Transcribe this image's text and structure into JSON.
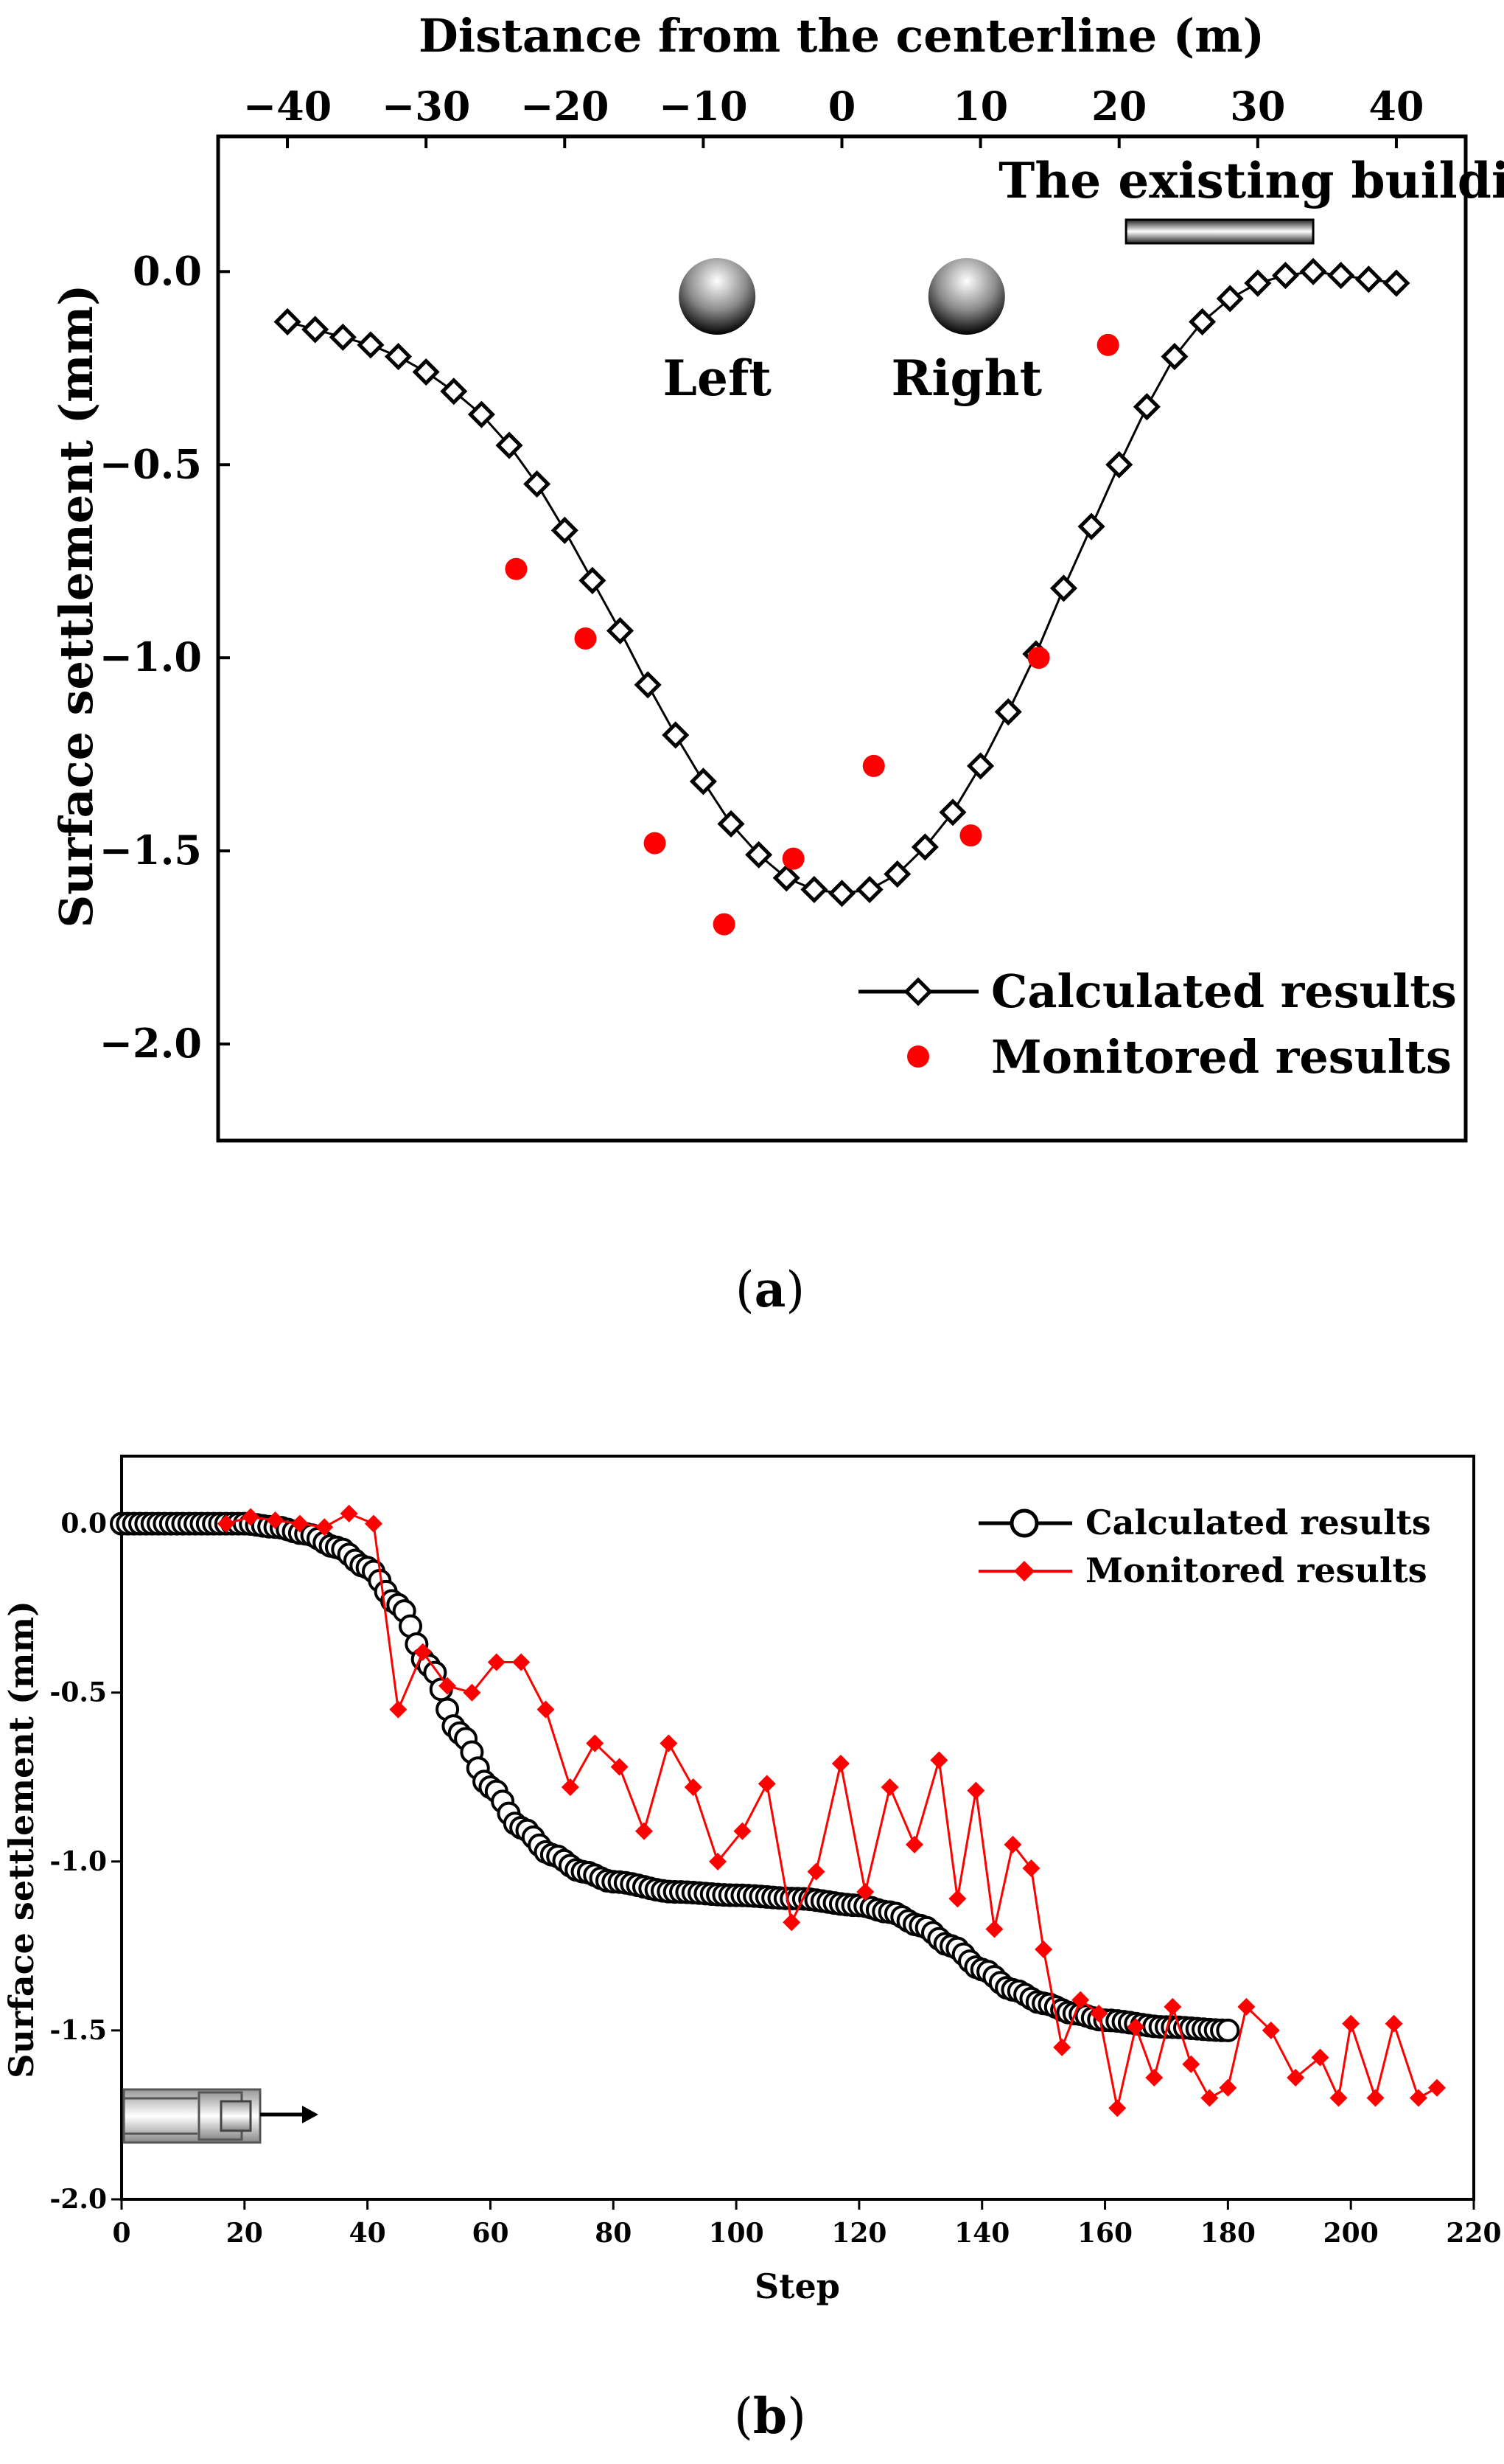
{
  "chart_data": [
    {
      "panel": "a",
      "type": "scatter",
      "caption_letter": "a",
      "xlabel": "Distance from the centerline (m)",
      "ylabel": "Surface settlement (mm)",
      "xlim": [
        -45,
        45
      ],
      "ylim": [
        -2.25,
        0.35
      ],
      "xticks": [
        -40,
        -30,
        -20,
        -10,
        0,
        10,
        20,
        30,
        40
      ],
      "xtick_labels": [
        "−40",
        "−30",
        "−20",
        "−10",
        "0",
        "10",
        "20",
        "30",
        "40"
      ],
      "yticks": [
        0.0,
        -0.5,
        -1.0,
        -1.5,
        -2.0
      ],
      "ytick_labels": [
        "0.0",
        "−0.5",
        "−1.0",
        "−1.5",
        "−2.0"
      ],
      "annotations": {
        "building": "The existing building",
        "left": "Left",
        "right": "Right"
      },
      "building_span": [
        20.5,
        34
      ],
      "tunnels": [
        {
          "name": "Left",
          "x": -9
        },
        {
          "name": "Right",
          "x": 9
        }
      ],
      "legend": [
        "Calculated results",
        "Monitored results"
      ],
      "series": [
        {
          "name": "Calculated results",
          "style": "line-diamond",
          "points": [
            [
              -40,
              -0.13
            ],
            [
              -38,
              -0.15
            ],
            [
              -36,
              -0.17
            ],
            [
              -34,
              -0.19
            ],
            [
              -32,
              -0.22
            ],
            [
              -30,
              -0.26
            ],
            [
              -28,
              -0.31
            ],
            [
              -26,
              -0.37
            ],
            [
              -24,
              -0.45
            ],
            [
              -22,
              -0.55
            ],
            [
              -20,
              -0.67
            ],
            [
              -18,
              -0.8
            ],
            [
              -16,
              -0.93
            ],
            [
              -14,
              -1.07
            ],
            [
              -12,
              -1.2
            ],
            [
              -10,
              -1.32
            ],
            [
              -8,
              -1.43
            ],
            [
              -6,
              -1.51
            ],
            [
              -4,
              -1.57
            ],
            [
              -2,
              -1.6
            ],
            [
              0,
              -1.61
            ],
            [
              2,
              -1.6
            ],
            [
              4,
              -1.56
            ],
            [
              6,
              -1.49
            ],
            [
              8,
              -1.4
            ],
            [
              10,
              -1.28
            ],
            [
              12,
              -1.14
            ],
            [
              14,
              -0.99
            ],
            [
              16,
              -0.82
            ],
            [
              18,
              -0.66
            ],
            [
              20,
              -0.5
            ],
            [
              22,
              -0.35
            ],
            [
              24,
              -0.22
            ],
            [
              26,
              -0.13
            ],
            [
              28,
              -0.07
            ],
            [
              30,
              -0.03
            ],
            [
              32,
              -0.01
            ],
            [
              34,
              0.0
            ],
            [
              36,
              -0.01
            ],
            [
              38,
              -0.02
            ],
            [
              40,
              -0.03
            ]
          ]
        },
        {
          "name": "Monitored results",
          "style": "dot",
          "points": [
            [
              -23.5,
              -0.77
            ],
            [
              -18.5,
              -0.95
            ],
            [
              -13.5,
              -1.48
            ],
            [
              -8.5,
              -1.69
            ],
            [
              -3.5,
              -1.52
            ],
            [
              2.3,
              -1.28
            ],
            [
              9.3,
              -1.46
            ],
            [
              14.2,
              -1.0
            ],
            [
              19.2,
              -0.19
            ]
          ]
        }
      ]
    },
    {
      "panel": "b",
      "type": "line",
      "caption_letter": "b",
      "xlabel": "Step",
      "ylabel": "Surface settlement (mm)",
      "xlim": [
        0,
        220
      ],
      "ylim": [
        -2.0,
        0.2
      ],
      "xticks": [
        0,
        20,
        40,
        60,
        80,
        100,
        120,
        140,
        160,
        180,
        200,
        220
      ],
      "xtick_labels": [
        "0",
        "20",
        "40",
        "60",
        "80",
        "100",
        "120",
        "140",
        "160",
        "180",
        "200",
        "220"
      ],
      "yticks": [
        0.0,
        -0.5,
        -1.0,
        -1.5,
        -2.0
      ],
      "ytick_labels": [
        "0.0",
        "-0.5",
        "-1.0",
        "-1.5",
        "-2.0"
      ],
      "legend": [
        "Calculated results",
        "Monitored results"
      ],
      "series": [
        {
          "name": "Calculated results",
          "style": "line-circle",
          "points": [
            [
              0,
              0
            ],
            [
              10,
              0
            ],
            [
              20,
              0
            ],
            [
              25,
              -0.01
            ],
            [
              30,
              -0.03
            ],
            [
              35,
              -0.07
            ],
            [
              40,
              -0.13
            ],
            [
              45,
              -0.24
            ],
            [
              50,
              -0.42
            ],
            [
              55,
              -0.62
            ],
            [
              60,
              -0.78
            ],
            [
              65,
              -0.9
            ],
            [
              70,
              -0.98
            ],
            [
              75,
              -1.03
            ],
            [
              80,
              -1.06
            ],
            [
              90,
              -1.09
            ],
            [
              100,
              -1.1
            ],
            [
              110,
              -1.11
            ],
            [
              120,
              -1.13
            ],
            [
              125,
              -1.15
            ],
            [
              130,
              -1.19
            ],
            [
              135,
              -1.25
            ],
            [
              140,
              -1.32
            ],
            [
              145,
              -1.38
            ],
            [
              150,
              -1.42
            ],
            [
              155,
              -1.45
            ],
            [
              160,
              -1.47
            ],
            [
              170,
              -1.49
            ],
            [
              180,
              -1.5
            ]
          ]
        },
        {
          "name": "Monitored results",
          "style": "line-diamond-red",
          "points": [
            [
              17,
              0
            ],
            [
              21,
              0.02
            ],
            [
              25,
              0.01
            ],
            [
              29,
              0
            ],
            [
              33,
              -0.01
            ],
            [
              37,
              0.03
            ],
            [
              41,
              0
            ],
            [
              45,
              -0.55
            ],
            [
              49,
              -0.38
            ],
            [
              53,
              -0.48
            ],
            [
              57,
              -0.5
            ],
            [
              61,
              -0.41
            ],
            [
              65,
              -0.41
            ],
            [
              69,
              -0.55
            ],
            [
              73,
              -0.78
            ],
            [
              77,
              -0.65
            ],
            [
              81,
              -0.72
            ],
            [
              85,
              -0.91
            ],
            [
              89,
              -0.65
            ],
            [
              93,
              -0.78
            ],
            [
              97,
              -1.0
            ],
            [
              101,
              -0.91
            ],
            [
              105,
              -0.77
            ],
            [
              109,
              -1.18
            ],
            [
              113,
              -1.03
            ],
            [
              117,
              -0.71
            ],
            [
              121,
              -1.09
            ],
            [
              125,
              -0.78
            ],
            [
              129,
              -0.95
            ],
            [
              133,
              -0.7
            ],
            [
              136,
              -1.11
            ],
            [
              139,
              -0.79
            ],
            [
              142,
              -1.2
            ],
            [
              145,
              -0.95
            ],
            [
              148,
              -1.02
            ],
            [
              150,
              -1.26
            ],
            [
              153,
              -1.55
            ],
            [
              156,
              -1.41
            ],
            [
              159,
              -1.45
            ],
            [
              162,
              -1.73
            ],
            [
              165,
              -1.49
            ],
            [
              168,
              -1.64
            ],
            [
              171,
              -1.43
            ],
            [
              174,
              -1.6
            ],
            [
              177,
              -1.7
            ],
            [
              180,
              -1.67
            ],
            [
              183,
              -1.43
            ],
            [
              187,
              -1.5
            ],
            [
              191,
              -1.64
            ],
            [
              195,
              -1.58
            ],
            [
              198,
              -1.7
            ],
            [
              200,
              -1.48
            ],
            [
              204,
              -1.7
            ],
            [
              207,
              -1.48
            ],
            [
              211,
              -1.7
            ],
            [
              214,
              -1.67
            ]
          ]
        }
      ]
    }
  ]
}
